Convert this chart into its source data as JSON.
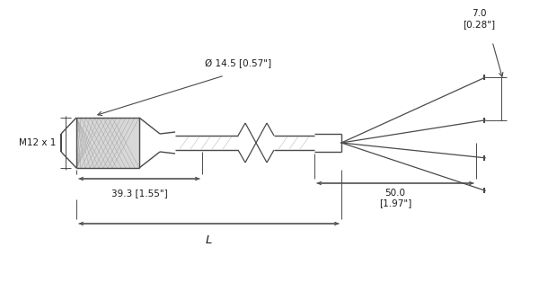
{
  "bg_color": "#ffffff",
  "line_color": "#4a4a4a",
  "dim_color": "#4a4a4a",
  "text_color": "#1a1a1a",
  "labels": {
    "M12x1": "M12 x 1",
    "diameter": "Ø 14.5 [0.57\"]",
    "len1": "39.3 [1.55\"]",
    "len2": "50.0\n[1.97\"]",
    "len3": "7.0\n[0.28\"]",
    "L": "L"
  },
  "font_size": 7.5
}
